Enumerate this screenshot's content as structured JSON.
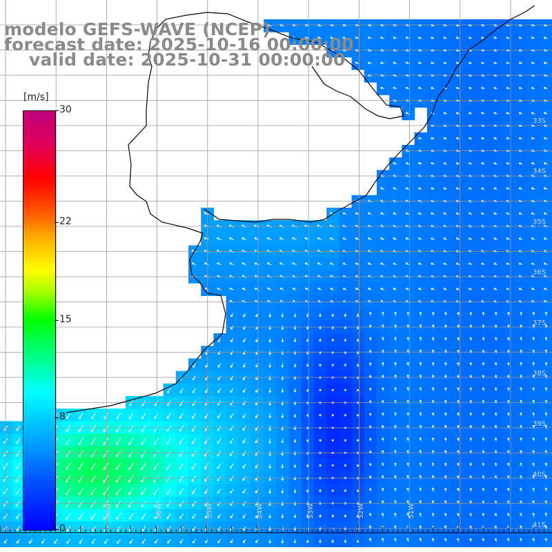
{
  "title": {
    "model": "modelo GEFS-WAVE (NCEP)",
    "forecast": "forecast date: 2025-10-16 00:00:00",
    "valid": "valid date: 2025-10-31 00:00:00"
  },
  "colorbar": {
    "unit": "[m/s]",
    "ticks": [
      {
        "label": "30",
        "value": 30
      },
      {
        "label": "22",
        "value": 22
      },
      {
        "label": "15",
        "value": 15
      },
      {
        "label": "8",
        "value": 8
      },
      {
        "label": "0",
        "value": 0
      }
    ],
    "min": 0,
    "max": 30
  },
  "lon_labels": [
    "57W",
    "56W",
    "55W",
    "54W",
    "53W",
    "52W",
    "51W"
  ],
  "lat_labels": [
    "33S",
    "34S",
    "35S",
    "36S",
    "37S",
    "38S",
    "39S",
    "40S",
    "41S"
  ],
  "colors": {
    "land": "#ffffff",
    "coast": "#000000",
    "grid": "#999999",
    "arrow": "#ffffff",
    "title": "#8a8a8a"
  }
}
